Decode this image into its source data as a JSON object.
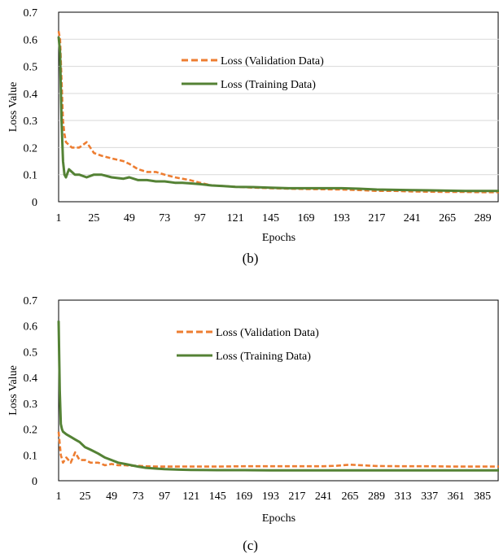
{
  "charts": [
    {
      "type": "line",
      "caption": "(b)",
      "xlabel": "Epochs",
      "ylabel": "Loss Value",
      "ylim": [
        0,
        0.7
      ],
      "yticks": [
        "0",
        "0.1",
        "0.2",
        "0.3",
        "0.4",
        "0.5",
        "0.6",
        "0.7"
      ],
      "xlim": [
        1,
        300
      ],
      "xticks": [
        "1",
        "25",
        "49",
        "73",
        "97",
        "121",
        "145",
        "169",
        "193",
        "217",
        "241",
        "265",
        "289"
      ],
      "grid": "horizontal",
      "legend_position": "center",
      "series": [
        {
          "name": "Loss (Validation Data)",
          "color": "#ED7D31",
          "style": "dashed",
          "x": [
            1,
            2,
            3,
            4,
            5,
            6,
            8,
            10,
            12,
            15,
            20,
            25,
            30,
            37,
            45,
            49,
            55,
            61,
            67,
            73,
            80,
            85,
            90,
            97,
            105,
            113,
            121,
            133,
            145,
            157,
            169,
            181,
            193,
            205,
            217,
            229,
            241,
            253,
            265,
            277,
            289,
            300
          ],
          "y": [
            0.63,
            0.6,
            0.45,
            0.3,
            0.25,
            0.22,
            0.21,
            0.2,
            0.2,
            0.2,
            0.22,
            0.18,
            0.17,
            0.16,
            0.15,
            0.14,
            0.12,
            0.11,
            0.11,
            0.1,
            0.09,
            0.085,
            0.08,
            0.07,
            0.06,
            0.058,
            0.055,
            0.052,
            0.05,
            0.048,
            0.047,
            0.046,
            0.045,
            0.043,
            0.04,
            0.04,
            0.038,
            0.037,
            0.036,
            0.036,
            0.035,
            0.035
          ]
        },
        {
          "name": "Loss (Training Data)",
          "color": "#548235",
          "style": "solid",
          "x": [
            1,
            2,
            3,
            4,
            5,
            6,
            8,
            10,
            12,
            15,
            20,
            25,
            30,
            37,
            45,
            49,
            55,
            61,
            67,
            73,
            80,
            85,
            90,
            97,
            105,
            113,
            121,
            133,
            145,
            157,
            169,
            181,
            193,
            205,
            217,
            229,
            241,
            253,
            265,
            277,
            289,
            300
          ],
          "y": [
            0.61,
            0.55,
            0.3,
            0.15,
            0.1,
            0.09,
            0.12,
            0.11,
            0.1,
            0.1,
            0.09,
            0.1,
            0.1,
            0.09,
            0.085,
            0.09,
            0.08,
            0.08,
            0.075,
            0.075,
            0.07,
            0.07,
            0.068,
            0.065,
            0.06,
            0.058,
            0.055,
            0.054,
            0.052,
            0.05,
            0.05,
            0.05,
            0.05,
            0.048,
            0.045,
            0.044,
            0.043,
            0.042,
            0.041,
            0.04,
            0.04,
            0.04
          ]
        }
      ]
    },
    {
      "type": "line",
      "caption": "(c)",
      "xlabel": "Epochs",
      "ylabel": "Loss Value",
      "ylim": [
        0,
        0.7
      ],
      "yticks": [
        "0",
        "0.1",
        "0.2",
        "0.3",
        "0.4",
        "0.5",
        "0.6",
        "0.7"
      ],
      "xlim": [
        1,
        400
      ],
      "xticks": [
        "1",
        "25",
        "49",
        "73",
        "97",
        "121",
        "145",
        "169",
        "193",
        "217",
        "241",
        "265",
        "289",
        "313",
        "337",
        "361",
        "385"
      ],
      "grid": "none",
      "legend_position": "center",
      "series": [
        {
          "name": "Loss (Validation Data)",
          "color": "#ED7D31",
          "style": "dashed",
          "x": [
            1,
            3,
            5,
            8,
            12,
            16,
            20,
            25,
            30,
            37,
            43,
            49,
            55,
            61,
            67,
            73,
            80,
            90,
            97,
            110,
            121,
            145,
            169,
            193,
            217,
            241,
            253,
            265,
            289,
            313,
            337,
            361,
            385,
            400
          ],
          "y": [
            0.19,
            0.1,
            0.07,
            0.09,
            0.07,
            0.11,
            0.08,
            0.08,
            0.07,
            0.07,
            0.06,
            0.065,
            0.06,
            0.06,
            0.058,
            0.058,
            0.056,
            0.055,
            0.055,
            0.055,
            0.055,
            0.055,
            0.056,
            0.056,
            0.056,
            0.056,
            0.058,
            0.062,
            0.057,
            0.056,
            0.056,
            0.055,
            0.055,
            0.055
          ]
        },
        {
          "name": "Loss (Training Data)",
          "color": "#548235",
          "style": "solid",
          "x": [
            1,
            2,
            3,
            4,
            5,
            8,
            12,
            16,
            20,
            25,
            30,
            37,
            43,
            49,
            55,
            61,
            67,
            73,
            80,
            90,
            97,
            110,
            121,
            145,
            169,
            193,
            217,
            241,
            265,
            289,
            313,
            337,
            361,
            385,
            400
          ],
          "y": [
            0.62,
            0.35,
            0.22,
            0.2,
            0.19,
            0.18,
            0.17,
            0.16,
            0.15,
            0.13,
            0.12,
            0.105,
            0.09,
            0.08,
            0.07,
            0.065,
            0.06,
            0.055,
            0.05,
            0.047,
            0.045,
            0.043,
            0.042,
            0.041,
            0.041,
            0.04,
            0.04,
            0.04,
            0.04,
            0.04,
            0.04,
            0.04,
            0.04,
            0.04,
            0.04
          ]
        }
      ]
    }
  ]
}
